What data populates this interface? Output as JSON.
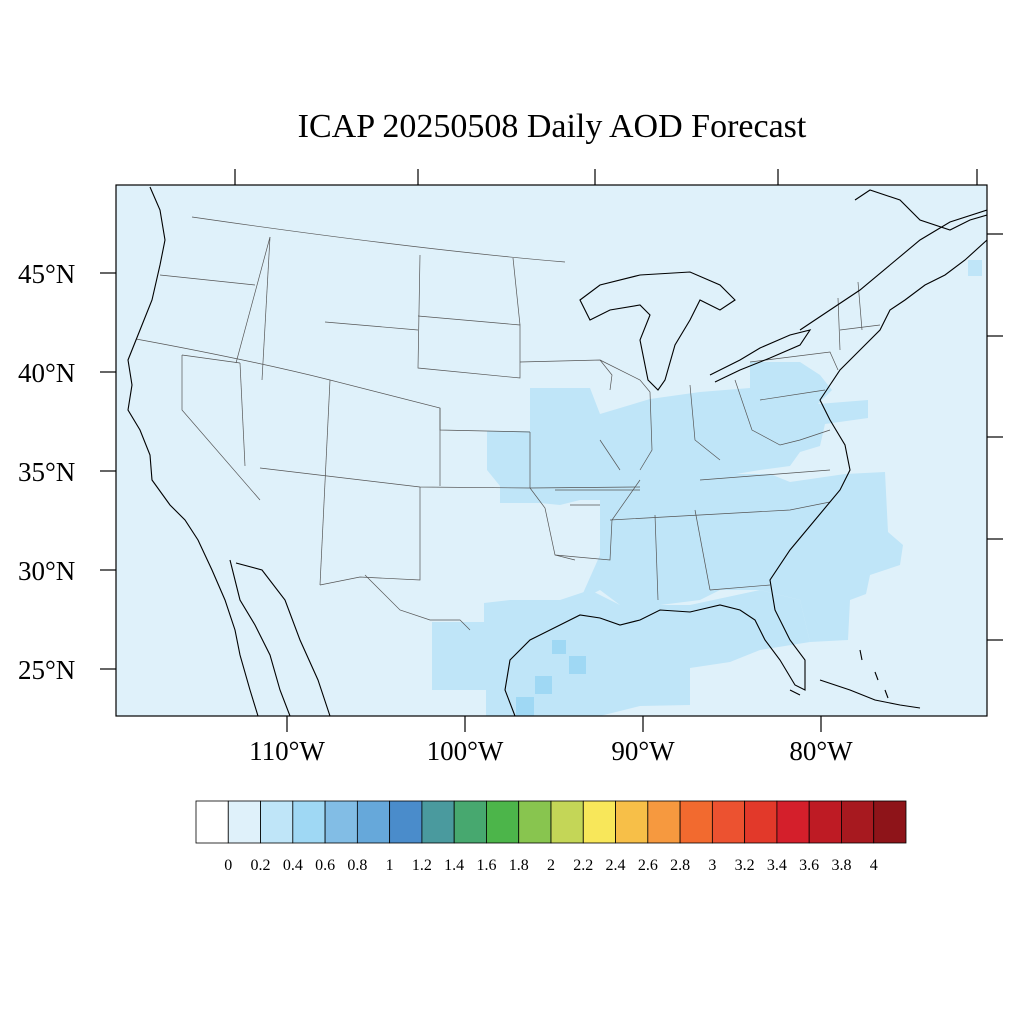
{
  "title": "ICAP 20250508 Daily AOD Forecast",
  "map": {
    "region": "Continental United States",
    "lat_labels": [
      "45°N",
      "40°N",
      "35°N",
      "30°N",
      "25°N"
    ],
    "lat_values": [
      45,
      40,
      35,
      30,
      25
    ],
    "lon_labels": [
      "110°W",
      "100°W",
      "90°W",
      "80°W"
    ],
    "lon_values": [
      -110,
      -100,
      -90,
      -80
    ],
    "extent": {
      "lon_min": -119.5,
      "lon_max": -70.8,
      "lat_min": 22.8,
      "lat_max": 49.5
    },
    "background_fill": "#dff1fa",
    "coastline_color": "#000000",
    "state_border_color": "#444444"
  },
  "aod_regions": [
    {
      "name": "Central Plains / Midwest",
      "level": "0.2-0.4",
      "color": "#bfe5f8"
    },
    {
      "name": "Southeast",
      "level": "0.2-0.4",
      "color": "#bfe5f8"
    },
    {
      "name": "Gulf Coast",
      "level": "0.2-0.4",
      "color": "#bfe5f8"
    },
    {
      "name": "Mid-Atlantic",
      "level": "0.2-0.4",
      "color": "#bfe5f8"
    },
    {
      "name": "Texas Gulf spots",
      "level": "0.4-0.6",
      "color": "#9fd8f4"
    }
  ],
  "colorbar": {
    "labels": [
      "0",
      "0.2",
      "0.4",
      "0.6",
      "0.8",
      "1",
      "1.2",
      "1.4",
      "1.6",
      "1.8",
      "2",
      "2.2",
      "2.4",
      "2.6",
      "2.8",
      "3",
      "3.2",
      "3.4",
      "3.6",
      "3.8",
      "4"
    ],
    "colors": [
      "#ffffff",
      "#dff1fa",
      "#bfe5f8",
      "#9fd8f4",
      "#82bde5",
      "#66a8da",
      "#4a8ccb",
      "#4a9a9e",
      "#47a86f",
      "#4cb54a",
      "#88c54f",
      "#c4d657",
      "#f8e75a",
      "#f7bf48",
      "#f6993f",
      "#f26a2f",
      "#ec5230",
      "#e2392a",
      "#d41f2b",
      "#be1b24",
      "#a7191f",
      "#8e1419"
    ]
  }
}
